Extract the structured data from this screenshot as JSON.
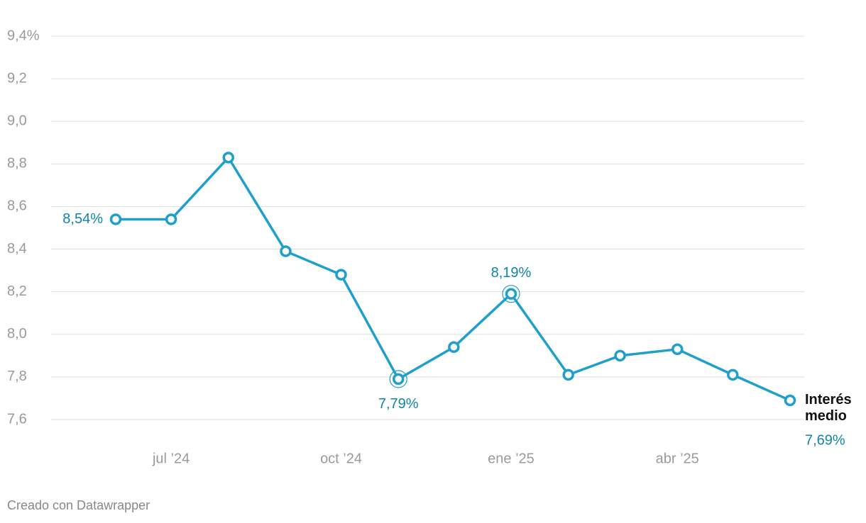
{
  "chart_data": {
    "type": "line",
    "x": [
      "2024-06",
      "2024-07",
      "2024-08",
      "2024-09",
      "2024-10",
      "2024-11",
      "2024-12",
      "2025-01",
      "2025-02",
      "2025-03",
      "2025-04",
      "2025-05",
      "2025-06"
    ],
    "series": [
      {
        "name": "Interés medio",
        "color": "#1f9fcc",
        "values": [
          8.54,
          8.54,
          8.83,
          8.39,
          8.28,
          7.79,
          7.94,
          8.19,
          7.81,
          7.9,
          7.93,
          7.81,
          7.69
        ],
        "value_labels": [
          "8,54%",
          null,
          null,
          null,
          null,
          "7,79%",
          null,
          "8,19%",
          null,
          null,
          null,
          null,
          "7,69%"
        ]
      }
    ],
    "xlim": [
      "2024-06",
      "2025-06"
    ],
    "xticks": [
      {
        "value": "2024-07",
        "label": "jul ’24"
      },
      {
        "value": "2024-10",
        "label": "oct ’24"
      },
      {
        "value": "2025-01",
        "label": "ene ’25"
      },
      {
        "value": "2025-04",
        "label": "abr ’25"
      }
    ],
    "ylim": [
      7.6,
      9.4
    ],
    "yticks": [
      {
        "value": 7.6,
        "label": "7,6"
      },
      {
        "value": 7.8,
        "label": "7,8"
      },
      {
        "value": 8.0,
        "label": "8,0"
      },
      {
        "value": 8.2,
        "label": "8,2"
      },
      {
        "value": 8.4,
        "label": "8,4"
      },
      {
        "value": 8.6,
        "label": "8,6"
      },
      {
        "value": 8.8,
        "label": "8,8"
      },
      {
        "value": 9.0,
        "label": "9,0"
      },
      {
        "value": 9.2,
        "label": "9,2"
      },
      {
        "value": 9.4,
        "label": "9,4%"
      }
    ],
    "grid": true,
    "footer": "Creado con Datawrapper"
  }
}
